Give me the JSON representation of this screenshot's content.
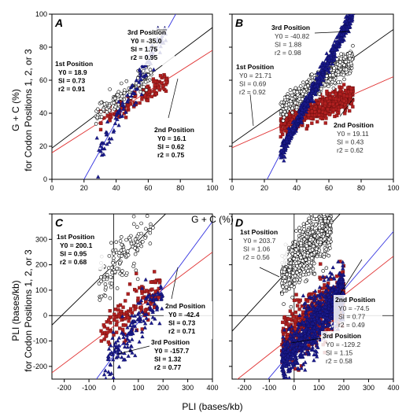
{
  "figure": {
    "shared_ylabel_top": [
      "G + C (%)",
      "for Codon Positions 1, 2, or 3"
    ],
    "shared_xlabel_top": "G + C (%)",
    "shared_ylabel_bottom": [
      "PLI (bases/kb)",
      "for Codon Positions 1, 2, or 3"
    ],
    "shared_xlabel_bottom": "PLI (bases/kb)"
  },
  "colors": {
    "pos1_marker": "#ffffff",
    "pos1_edge": "#000000",
    "pos1_line": "#000000",
    "pos2_marker": "#b02020",
    "pos2_line": "#e03030",
    "pos3_marker": "#1a1a8c",
    "pos3_line": "#3030e0"
  },
  "chart_data": [
    {
      "panel": "A",
      "type": "scatter",
      "xlim": [
        0,
        100
      ],
      "ylim": [
        0,
        100
      ],
      "xticks": [
        0,
        20,
        40,
        60,
        80,
        100
      ],
      "yticks": [
        0,
        20,
        40,
        60,
        80,
        100
      ],
      "xtick_labels": [
        "0",
        "20",
        "40",
        "60",
        "80",
        "100"
      ],
      "ytick_labels": [
        "0",
        "20",
        "40",
        "60",
        "80",
        "100"
      ],
      "series": [
        {
          "name": "1st Position",
          "y0": 18.9,
          "slope": 0.73,
          "r2": 0.91,
          "x_range": [
            27,
            62
          ],
          "n": 110,
          "spread": 3.5
        },
        {
          "name": "2nd Position",
          "y0": 16.1,
          "slope": 0.62,
          "r2": 0.75,
          "x_range": [
            30,
            72
          ],
          "n": 120,
          "spread": 3.0
        },
        {
          "name": "3rd Position",
          "y0": -35.0,
          "slope": 1.75,
          "r2": 0.95,
          "x_range": [
            28,
            72
          ],
          "n": 100,
          "spread": 4.0
        }
      ],
      "annotations": [
        {
          "title": "3rd Position",
          "lines": [
            "Y0 = -35.0",
            "SI = 1.75",
            "r2 = 0.95"
          ]
        },
        {
          "title": "1st Position",
          "lines": [
            "Y0 = 18.9",
            "SI = 0.73",
            "r2 = 0.91"
          ]
        },
        {
          "title": "2nd Position",
          "lines": [
            "Y0 = 16.1",
            "SI = 0.62",
            "r2 = 0.75"
          ]
        }
      ]
    },
    {
      "panel": "B",
      "type": "scatter",
      "xlim": [
        0,
        100
      ],
      "ylim": [
        0,
        100
      ],
      "xticks": [
        0,
        20,
        40,
        60,
        80,
        100
      ],
      "yticks": [
        0,
        20,
        40,
        60,
        80,
        100
      ],
      "xtick_labels": [
        "0",
        "20",
        "40",
        "60",
        "80",
        "100"
      ],
      "ytick_labels": [],
      "series": [
        {
          "name": "1st Position",
          "y0": 21.71,
          "slope": 0.69,
          "r2": 0.92,
          "x_range": [
            30,
            75
          ],
          "n": 500,
          "spread": 3.5
        },
        {
          "name": "2nd Position",
          "y0": 19.11,
          "slope": 0.43,
          "r2": 0.62,
          "x_range": [
            30,
            75
          ],
          "n": 500,
          "spread": 3.5
        },
        {
          "name": "3rd Position",
          "y0": -40.82,
          "slope": 1.88,
          "r2": 0.98,
          "x_range": [
            30,
            75
          ],
          "n": 700,
          "spread": 2.5
        }
      ],
      "annotations": [
        {
          "title": "3rd Position",
          "lines": [
            "Y0 = -40.82",
            "SI = 1.88",
            "r2 = 0.98"
          ]
        },
        {
          "title": "1st Position",
          "lines": [
            "Y0 = 21.71",
            "SI = 0.69",
            "r2 = 0.92"
          ]
        },
        {
          "title": "2nd Position",
          "lines": [
            "Y0 = 19.11",
            "SI = 0.43",
            "r2 = 0.62"
          ]
        }
      ]
    },
    {
      "panel": "C",
      "type": "scatter",
      "xlim": [
        -250,
        400
      ],
      "ylim": [
        -250,
        400
      ],
      "xticks": [
        -200,
        -100,
        0,
        100,
        200,
        300,
        400
      ],
      "yticks": [
        -200,
        -100,
        0,
        100,
        200,
        300,
        400
      ],
      "xtick_labels": [
        "-200",
        "-100",
        "0",
        "100",
        "200",
        "300",
        "400"
      ],
      "ytick_labels": [
        "-200",
        "-100",
        "0",
        "100",
        "200",
        "300"
      ],
      "series": [
        {
          "name": "1st Position",
          "y0": 200.1,
          "slope": 0.95,
          "r2": 0.68,
          "x_range": [
            -60,
            160
          ],
          "n": 130,
          "spread": 45
        },
        {
          "name": "2nd Position",
          "y0": -42.4,
          "slope": 0.73,
          "r2": 0.71,
          "x_range": [
            -60,
            190
          ],
          "n": 140,
          "spread": 45
        },
        {
          "name": "3rd Position",
          "y0": -157.7,
          "slope": 1.32,
          "r2": 0.77,
          "x_range": [
            -40,
            200
          ],
          "n": 150,
          "spread": 45
        }
      ],
      "annotations": [
        {
          "title": "1st Position",
          "lines": [
            "Y0 = 200.1",
            "SI = 0.95",
            "r2 = 0.68"
          ]
        },
        {
          "title": "2nd Position",
          "lines": [
            "Y0 = -42.4",
            "SI = 0.73",
            "r2 = 0.71"
          ]
        },
        {
          "title": "3rd Position",
          "lines": [
            "Y0 = -157.7",
            "SI = 1.32",
            "r2 = 0.77"
          ]
        }
      ]
    },
    {
      "panel": "D",
      "type": "scatter",
      "xlim": [
        -250,
        400
      ],
      "ylim": [
        -250,
        400
      ],
      "xticks": [
        -200,
        -100,
        0,
        100,
        200,
        300,
        400
      ],
      "yticks": [
        -200,
        -100,
        0,
        100,
        200,
        300,
        400
      ],
      "xtick_labels": [
        "-200",
        "-100",
        "0",
        "100",
        "200",
        "300",
        "400"
      ],
      "ytick_labels": [],
      "series": [
        {
          "name": "1st Position",
          "y0": 203.7,
          "slope": 1.06,
          "r2": 0.56,
          "x_range": [
            -50,
            150
          ],
          "n": 700,
          "spread": 50
        },
        {
          "name": "2nd Position",
          "y0": -74.5,
          "slope": 0.77,
          "r2": 0.49,
          "x_range": [
            -50,
            200
          ],
          "n": 600,
          "spread": 55
        },
        {
          "name": "3rd Position",
          "y0": -129.2,
          "slope": 1.15,
          "r2": 0.58,
          "x_range": [
            -50,
            200
          ],
          "n": 900,
          "spread": 50
        }
      ],
      "annotations": [
        {
          "title": "1st Position",
          "lines": [
            "Y0 = 203.7",
            "SI = 1.06",
            "r2 = 0.56"
          ]
        },
        {
          "title": "2nd Position",
          "lines": [
            "Y0 = -74.5",
            "SI = 0.77",
            "r2 = 0.49"
          ]
        },
        {
          "title": "3rd Position",
          "lines": [
            "Y0 = -129.2",
            "SI = 1.15",
            "r2 = 0.58"
          ]
        }
      ]
    }
  ]
}
